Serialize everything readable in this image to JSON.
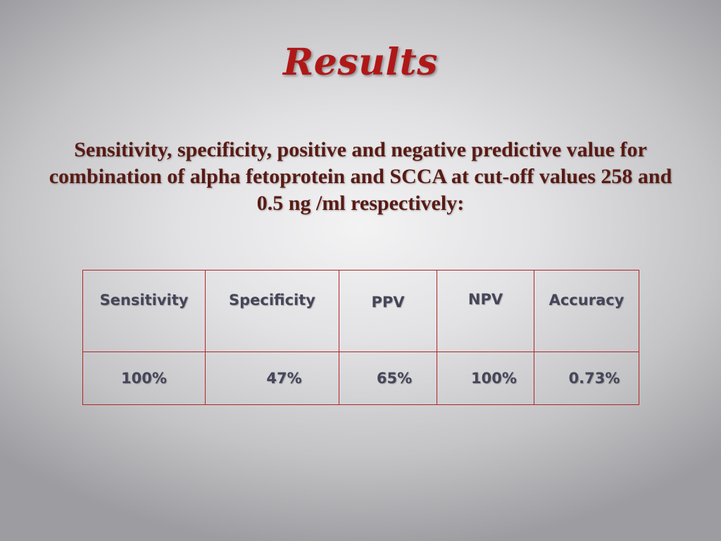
{
  "slide": {
    "title": "Results",
    "subtitle_lines": [
      "Sensitivity, specificity, positive and negative predictive value for",
      "combination of alpha fetoprotein and SCCA at cut-off values 258 and",
      "0.5 ng /ml respectively:"
    ]
  },
  "table": {
    "headers": [
      "Sensitivity",
      "Specificity",
      "PPV",
      "NPV",
      "Accuracy"
    ],
    "values": [
      "100%",
      "47%",
      "65%",
      "100%",
      "0.73%"
    ]
  },
  "colors": {
    "title": "#b01818",
    "subtitle": "#5a1a14",
    "cell_text": "#46465a",
    "table_border": "#b32424"
  }
}
